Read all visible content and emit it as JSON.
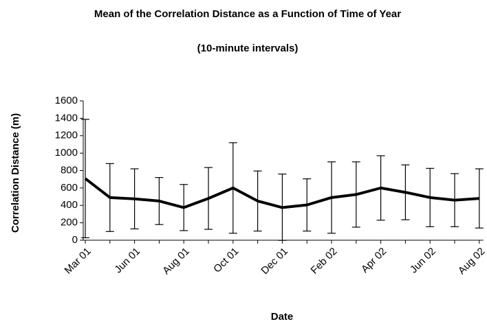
{
  "chart_data": {
    "type": "line_errorbar",
    "title": "Mean of the Correlation Distance as a Function of Time of Year",
    "subtitle": "(10-minute intervals)",
    "x_label": "Date",
    "y_label": "Correlation Distance (m)",
    "categories": [
      "Mar 01",
      null,
      "Jun 01",
      null,
      "Aug 01",
      null,
      "Oct 01",
      null,
      "Dec 01",
      null,
      "Feb 02",
      null,
      "Apr 02",
      null,
      "Jun 02",
      null,
      "Aug 02"
    ],
    "values": [
      708,
      490,
      475,
      450,
      375,
      480,
      600,
      450,
      375,
      405,
      490,
      525,
      600,
      550,
      490,
      460,
      480
    ],
    "errors": [
      680,
      390,
      345,
      270,
      265,
      355,
      520,
      345,
      385,
      300,
      410,
      375,
      370,
      315,
      335,
      305,
      340
    ],
    "color": "#000000",
    "ylim": [
      0,
      1600
    ],
    "yticks": [
      0,
      200,
      400,
      600,
      800,
      1000,
      1200,
      1400,
      1600
    ],
    "grid": false
  }
}
